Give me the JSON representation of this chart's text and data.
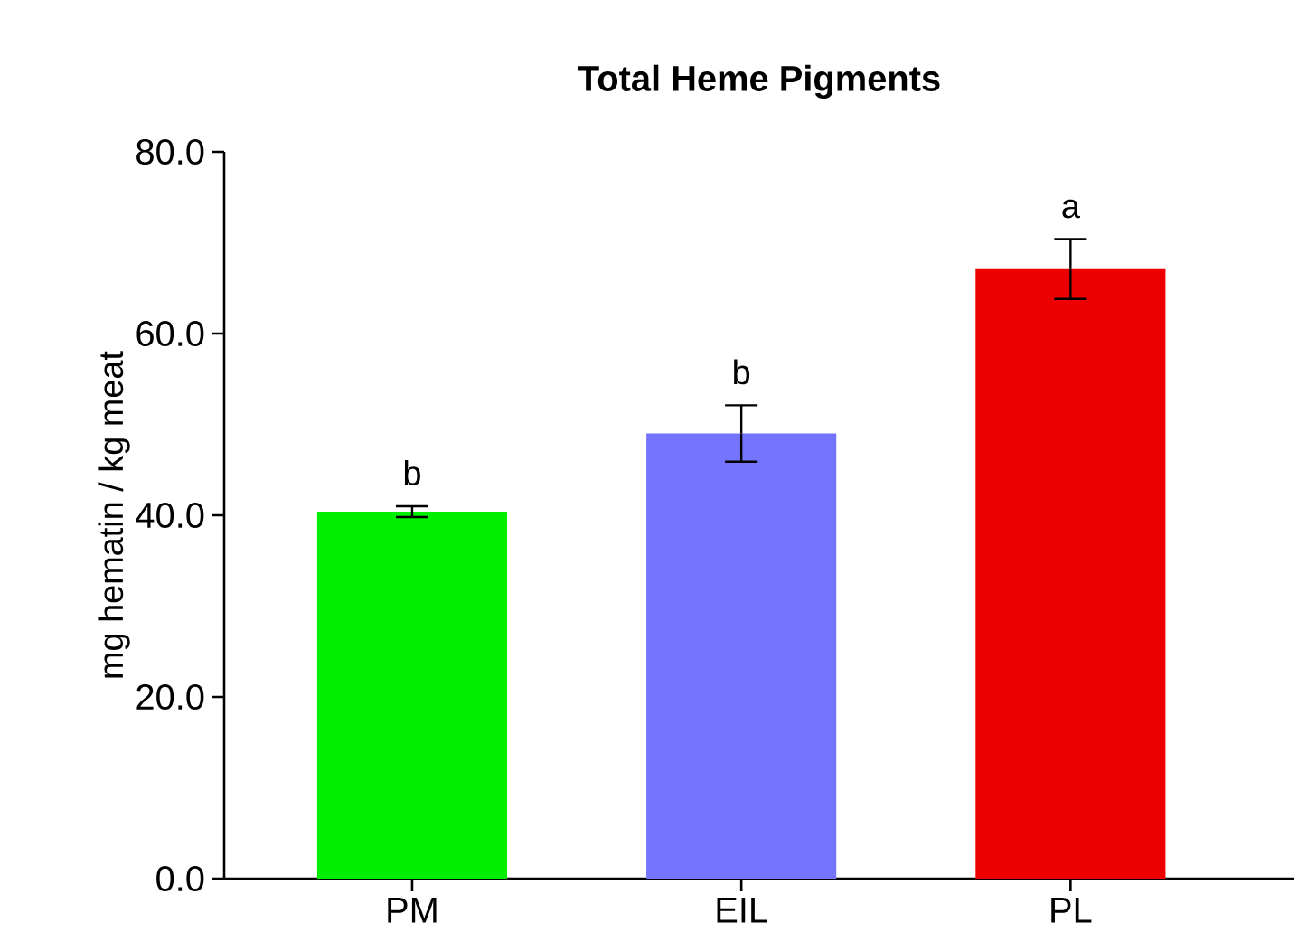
{
  "chart_data": {
    "type": "bar",
    "title": "Total Heme Pigments",
    "ylabel": "mg hematin / kg meat",
    "categories": [
      "PM",
      "EIL",
      "PL"
    ],
    "values": [
      40.4,
      49.0,
      67.1
    ],
    "errors": [
      0.6,
      3.1,
      3.3
    ],
    "colors": [
      "#00ee00",
      "#7474ff",
      "#ee0000"
    ],
    "ylim": [
      0,
      80
    ],
    "yticks": [
      {
        "value": 0,
        "label": "0.0"
      },
      {
        "value": 20,
        "label": "20.0"
      },
      {
        "value": 40,
        "label": "40.0"
      },
      {
        "value": 60,
        "label": "60.0"
      },
      {
        "value": 80,
        "label": "80.0"
      }
    ],
    "grid": false,
    "annotations": [
      "b",
      "b",
      "a"
    ]
  }
}
